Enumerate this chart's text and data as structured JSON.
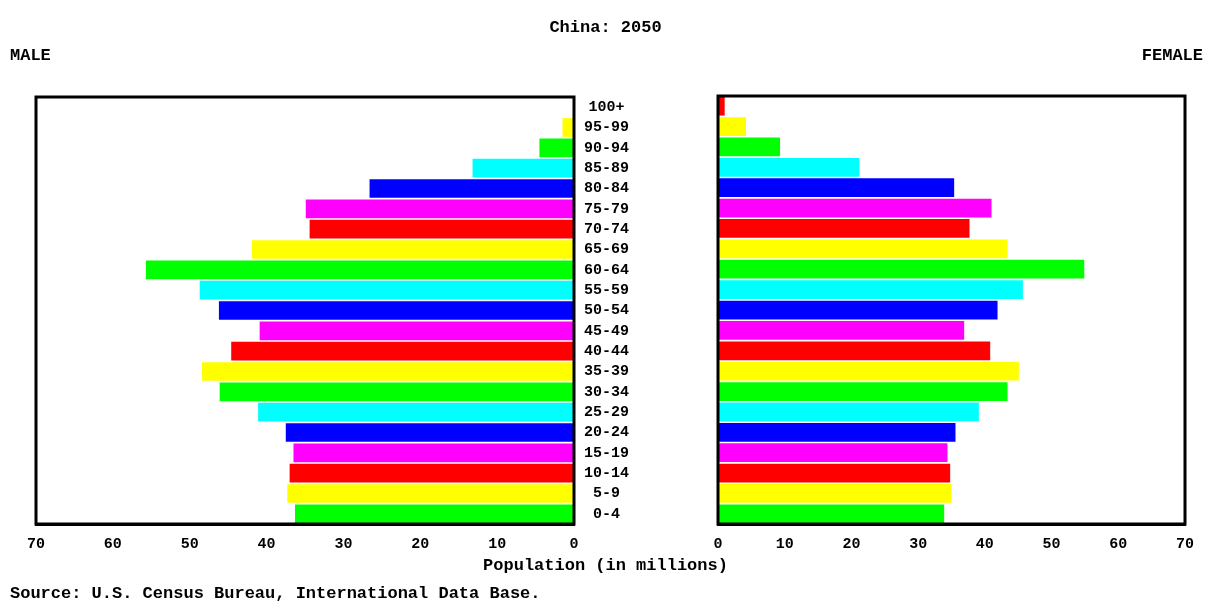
{
  "chart_data": [
    {
      "type": "bar",
      "orientation": "horizontal",
      "title": "China: 2050",
      "subtitle": "MALE",
      "annotations": [
        "Source: U.S. Census Bureau, International Data Base."
      ],
      "categories": [
        "100+",
        "95-99",
        "90-94",
        "85-89",
        "80-84",
        "75-79",
        "70-74",
        "65-69",
        "60-64",
        "55-59",
        "50-54",
        "45-49",
        "40-44",
        "35-39",
        "30-34",
        "25-29",
        "20-24",
        "15-19",
        "10-14",
        "5-9",
        "0-4"
      ],
      "values": [
        null,
        1.5,
        4.5,
        13.2,
        26.6,
        34.9,
        34.4,
        41.9,
        55.7,
        48.7,
        46.2,
        40.9,
        44.6,
        48.4,
        46.1,
        41.1,
        37.5,
        36.5,
        37.0,
        37.3,
        36.3
      ],
      "colors": [
        "#ff0000",
        "#ffff00",
        "#00ff00",
        "#00ffff",
        "#0000ff",
        "#ff00ff",
        "#ff0000",
        "#ffff00",
        "#00ff00",
        "#00ffff",
        "#0000ff",
        "#ff00ff",
        "#ff0000",
        "#ffff00",
        "#00ff00",
        "#00ffff",
        "#0000ff",
        "#ff00ff",
        "#ff0000",
        "#ffff00",
        "#00ff00"
      ],
      "xlim": [
        70,
        0
      ],
      "xticks": [
        70,
        60,
        50,
        40,
        30,
        20,
        10,
        0
      ]
    },
    {
      "type": "bar",
      "orientation": "horizontal",
      "subtitle": "FEMALE",
      "xlabel": "Population (in millions)",
      "tick_labels": "x",
      "categories": [
        null,
        null,
        null,
        null,
        null,
        null,
        null,
        null,
        null,
        null,
        null,
        null,
        null,
        null,
        null,
        null,
        null,
        null,
        null,
        null,
        null
      ],
      "values": [
        1.0,
        4.2,
        9.3,
        21.2,
        35.4,
        41.0,
        37.7,
        43.4,
        54.9,
        45.7,
        41.9,
        36.9,
        40.8,
        45.1,
        43.4,
        39.1,
        35.6,
        34.4,
        34.8,
        35.0,
        33.9
      ],
      "colors": [
        "#ff0000",
        "#ffff00",
        "#00ff00",
        "#00ffff",
        "#0000ff",
        "#ff00ff",
        "#ff0000",
        "#ffff00",
        "#00ff00",
        "#00ffff",
        "#0000ff",
        "#ff00ff",
        "#ff0000",
        "#ffff00",
        "#00ff00",
        "#00ffff",
        "#0000ff",
        "#ff00ff",
        "#ff0000",
        "#ffff00",
        "#00ff00"
      ],
      "xlim": [
        0,
        70
      ],
      "xticks": [
        0,
        10,
        20,
        30,
        40,
        50,
        60,
        70
      ]
    }
  ]
}
